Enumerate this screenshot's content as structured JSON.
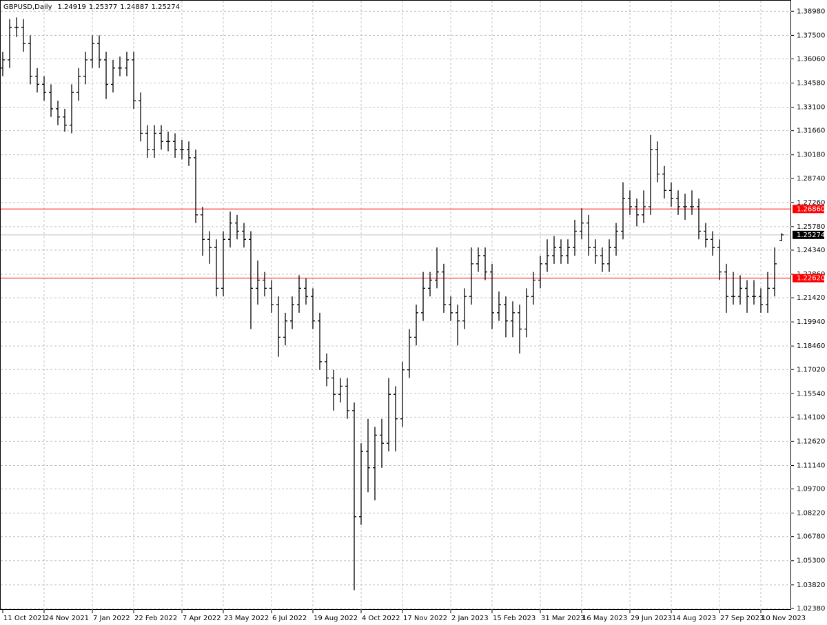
{
  "chart_data": {
    "type": "ohlc",
    "title": "GBPUSD,Daily",
    "color": "#000000",
    "grid": true,
    "categories": [
      "11 Oct 2021",
      null,
      null,
      null,
      null,
      null,
      "24 Nov 2021",
      null,
      null,
      null,
      null,
      null,
      null,
      "7 Jan 2022",
      null,
      null,
      null,
      null,
      null,
      "22 Feb 2022",
      null,
      null,
      null,
      null,
      null,
      null,
      "7 Apr 2022",
      null,
      null,
      null,
      null,
      null,
      "23 May 2022",
      null,
      null,
      null,
      null,
      null,
      null,
      "6 Jul 2022",
      null,
      null,
      null,
      null,
      null,
      "19 Aug 2022",
      null,
      null,
      null,
      null,
      null,
      null,
      "4 Oct 2022",
      null,
      null,
      null,
      null,
      null,
      "17 Nov 2022",
      null,
      null,
      null,
      null,
      null,
      null,
      "2 Jan 2023",
      null,
      null,
      null,
      null,
      null,
      "15 Feb 2023",
      null,
      null,
      null,
      null,
      null,
      null,
      "31 Mar 2023",
      null,
      null,
      null,
      null,
      null,
      "16 May 2023",
      null,
      null,
      null,
      null,
      null,
      null,
      "29 Jun 2023",
      null,
      null,
      null,
      null,
      null,
      "14 Aug 2023",
      null,
      null,
      null,
      null,
      null,
      null,
      "27 Sep 2023",
      null,
      null,
      null,
      null,
      null,
      "10 Nov 2023",
      null,
      null,
      null
    ],
    "open": [
      1.355,
      1.36,
      1.38,
      1.38,
      1.37,
      1.35,
      1.345,
      1.34,
      1.33,
      1.325,
      1.32,
      1.34,
      1.35,
      1.36,
      1.37,
      1.36,
      1.345,
      1.355,
      1.355,
      1.36,
      1.335,
      1.315,
      1.305,
      1.315,
      1.31,
      1.31,
      1.305,
      1.305,
      1.3,
      1.265,
      1.25,
      1.245,
      1.22,
      1.25,
      1.26,
      1.255,
      1.25,
      1.22,
      1.225,
      1.22,
      1.21,
      1.19,
      1.2,
      1.21,
      1.22,
      1.215,
      1.2,
      1.175,
      1.165,
      1.155,
      1.16,
      1.145,
      1.08,
      1.12,
      1.11,
      1.13,
      1.125,
      1.155,
      1.14,
      1.17,
      1.19,
      1.205,
      1.22,
      1.225,
      1.23,
      1.21,
      1.205,
      1.2,
      1.215,
      1.235,
      1.24,
      1.23,
      1.205,
      1.21,
      1.2,
      1.205,
      1.195,
      1.215,
      1.225,
      1.235,
      1.24,
      1.245,
      1.24,
      1.245,
      1.255,
      1.26,
      1.245,
      1.24,
      1.235,
      1.245,
      1.255,
      1.275,
      1.27,
      1.265,
      1.27,
      1.305,
      1.29,
      1.28,
      1.275,
      1.27,
      1.27,
      1.27,
      1.255,
      1.25,
      1.245,
      1.23,
      1.215,
      1.215,
      1.22,
      1.215,
      1.215,
      1.21,
      1.22,
      1.24919
    ],
    "high": [
      1.365,
      1.385,
      1.386,
      1.385,
      1.375,
      1.355,
      1.35,
      1.345,
      1.335,
      1.33,
      1.345,
      1.355,
      1.365,
      1.375,
      1.375,
      1.365,
      1.36,
      1.362,
      1.365,
      1.365,
      1.34,
      1.32,
      1.32,
      1.32,
      1.316,
      1.315,
      1.311,
      1.31,
      1.305,
      1.27,
      1.255,
      1.25,
      1.255,
      1.267,
      1.265,
      1.26,
      1.255,
      1.237,
      1.23,
      1.225,
      1.215,
      1.205,
      1.215,
      1.228,
      1.226,
      1.22,
      1.205,
      1.18,
      1.17,
      1.165,
      1.165,
      1.15,
      1.125,
      1.14,
      1.135,
      1.14,
      1.165,
      1.16,
      1.175,
      1.195,
      1.21,
      1.23,
      1.23,
      1.245,
      1.235,
      1.215,
      1.21,
      1.22,
      1.245,
      1.245,
      1.245,
      1.235,
      1.218,
      1.215,
      1.212,
      1.21,
      1.22,
      1.23,
      1.24,
      1.25,
      1.252,
      1.25,
      1.25,
      1.262,
      1.269,
      1.265,
      1.25,
      1.245,
      1.25,
      1.26,
      1.285,
      1.28,
      1.275,
      1.28,
      1.314,
      1.31,
      1.295,
      1.285,
      1.28,
      1.278,
      1.28,
      1.275,
      1.26,
      1.255,
      1.25,
      1.235,
      1.23,
      1.228,
      1.225,
      1.225,
      1.22,
      1.23,
      1.245,
      1.25377
    ],
    "low": [
      1.35,
      1.355,
      1.374,
      1.365,
      1.345,
      1.34,
      1.335,
      1.325,
      1.32,
      1.316,
      1.315,
      1.335,
      1.345,
      1.355,
      1.355,
      1.336,
      1.34,
      1.35,
      1.35,
      1.33,
      1.31,
      1.3,
      1.3,
      1.305,
      1.304,
      1.3,
      1.299,
      1.295,
      1.26,
      1.24,
      1.235,
      1.215,
      1.215,
      1.245,
      1.25,
      1.245,
      1.195,
      1.21,
      1.215,
      1.205,
      1.178,
      1.185,
      1.195,
      1.205,
      1.21,
      1.195,
      1.17,
      1.16,
      1.145,
      1.15,
      1.14,
      1.035,
      1.075,
      1.095,
      1.09,
      1.11,
      1.12,
      1.12,
      1.135,
      1.165,
      1.185,
      1.2,
      1.215,
      1.22,
      1.205,
      1.2,
      1.185,
      1.195,
      1.21,
      1.23,
      1.225,
      1.195,
      1.2,
      1.19,
      1.19,
      1.18,
      1.19,
      1.21,
      1.22,
      1.23,
      1.235,
      1.235,
      1.235,
      1.24,
      1.25,
      1.24,
      1.235,
      1.23,
      1.23,
      1.24,
      1.25,
      1.265,
      1.258,
      1.26,
      1.265,
      1.285,
      1.275,
      1.27,
      1.265,
      1.262,
      1.265,
      1.25,
      1.245,
      1.24,
      1.225,
      1.205,
      1.21,
      1.21,
      1.205,
      1.21,
      1.205,
      1.205,
      1.215,
      1.24887
    ],
    "close": [
      1.36,
      1.38,
      1.38,
      1.37,
      1.35,
      1.345,
      1.34,
      1.33,
      1.325,
      1.32,
      1.34,
      1.35,
      1.36,
      1.37,
      1.36,
      1.345,
      1.355,
      1.355,
      1.36,
      1.335,
      1.315,
      1.305,
      1.315,
      1.31,
      1.31,
      1.305,
      1.305,
      1.3,
      1.265,
      1.25,
      1.245,
      1.22,
      1.25,
      1.26,
      1.255,
      1.25,
      1.22,
      1.225,
      1.22,
      1.21,
      1.19,
      1.2,
      1.21,
      1.22,
      1.215,
      1.2,
      1.175,
      1.165,
      1.155,
      1.16,
      1.145,
      1.08,
      1.12,
      1.11,
      1.13,
      1.125,
      1.155,
      1.14,
      1.17,
      1.19,
      1.205,
      1.22,
      1.225,
      1.23,
      1.21,
      1.205,
      1.2,
      1.215,
      1.235,
      1.24,
      1.23,
      1.205,
      1.21,
      1.2,
      1.205,
      1.195,
      1.215,
      1.225,
      1.235,
      1.24,
      1.245,
      1.24,
      1.245,
      1.255,
      1.26,
      1.245,
      1.24,
      1.235,
      1.245,
      1.255,
      1.275,
      1.27,
      1.265,
      1.27,
      1.305,
      1.29,
      1.28,
      1.275,
      1.27,
      1.27,
      1.27,
      1.255,
      1.25,
      1.245,
      1.23,
      1.215,
      1.215,
      1.22,
      1.215,
      1.215,
      1.21,
      1.22,
      1.235,
      1.25274
    ],
    "ylim": [
      1.0229,
      1.3967
    ],
    "yticks": [
      {
        "value": 1.3898,
        "label": "1.38980"
      },
      {
        "value": 1.375,
        "label": "1.37500"
      },
      {
        "value": 1.3606,
        "label": "1.36060"
      },
      {
        "value": 1.3458,
        "label": "1.34580"
      },
      {
        "value": 1.331,
        "label": "1.33100"
      },
      {
        "value": 1.3166,
        "label": "1.31660"
      },
      {
        "value": 1.3018,
        "label": "1.30180"
      },
      {
        "value": 1.2874,
        "label": "1.28740"
      },
      {
        "value": 1.2726,
        "label": "1.27260"
      },
      {
        "value": 1.2578,
        "label": "1.25780"
      },
      {
        "value": 1.2434,
        "label": "1.24340"
      },
      {
        "value": 1.2286,
        "label": "1.22860"
      },
      {
        "value": 1.2142,
        "label": "1.21420"
      },
      {
        "value": 1.1994,
        "label": "1.19940"
      },
      {
        "value": 1.1846,
        "label": "1.18460"
      },
      {
        "value": 1.1702,
        "label": "1.17020"
      },
      {
        "value": 1.1554,
        "label": "1.15540"
      },
      {
        "value": 1.141,
        "label": "1.14100"
      },
      {
        "value": 1.1262,
        "label": "1.12620"
      },
      {
        "value": 1.1114,
        "label": "1.11140"
      },
      {
        "value": 1.097,
        "label": "1.09700"
      },
      {
        "value": 1.0822,
        "label": "1.08220"
      },
      {
        "value": 1.0678,
        "label": "1.06780"
      },
      {
        "value": 1.053,
        "label": "1.05300"
      },
      {
        "value": 1.0382,
        "label": "1.03820"
      },
      {
        "value": 1.0238,
        "label": "1.02380"
      }
    ],
    "levels": [
      {
        "value": 1.2686,
        "label": "1.26860",
        "color": "#ff0000"
      },
      {
        "value": 1.2262,
        "label": "1.22620",
        "color": "#ff0000"
      }
    ],
    "last_price_color": "#c0c0c0"
  }
}
